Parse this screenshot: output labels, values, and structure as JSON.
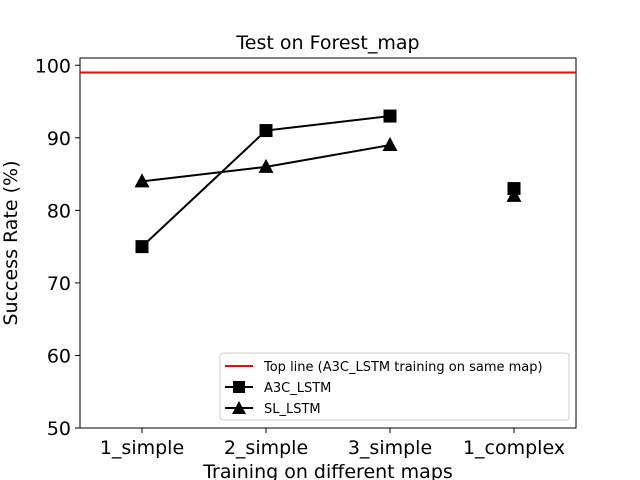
{
  "chart_data": {
    "type": "line",
    "title": "Test on Forest_map",
    "xlabel": "Training on different maps",
    "ylabel": "Success Rate (%)",
    "categories": [
      "1_simple",
      "2_simple",
      "3_simple",
      "1_complex"
    ],
    "ylim": [
      50,
      101
    ],
    "yticks": [
      50,
      60,
      70,
      80,
      90,
      100
    ],
    "grid": false,
    "legend_position": "bottom-right",
    "reference_line": {
      "name": "Top line (A3C_LSTM training on same map)",
      "value": 99,
      "color": "#ff0000"
    },
    "series": [
      {
        "name": "A3C_LSTM",
        "marker": "square",
        "color": "#000000",
        "values": [
          75,
          91,
          93,
          83
        ]
      },
      {
        "name": "SL_LSTM",
        "marker": "triangle",
        "color": "#000000",
        "values": [
          84,
          86,
          89,
          82
        ]
      }
    ],
    "connected_points": 3
  }
}
